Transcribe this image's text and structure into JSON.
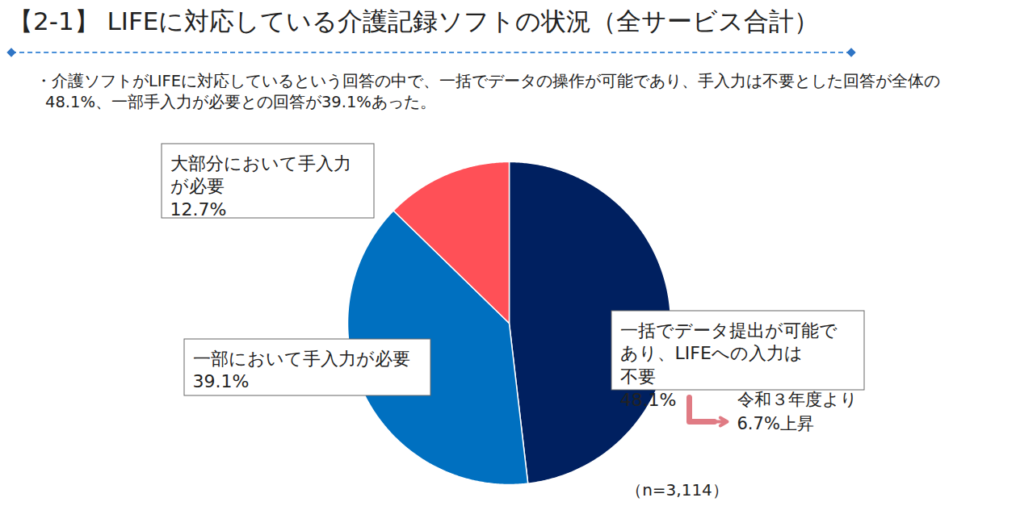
{
  "chart_data": {
    "type": "pie",
    "title": "【2-1】 LIFEに対応している介護記録ソフトの状況（全サービス合計）",
    "subtitle": "・介護ソフトがLIFEに対応しているという回答の中で、一括でデータの操作が可能であり、手入力は不要とした回答が全体の48.1%、一部手入力が必要との回答が39.1%あった。",
    "categories": [
      "一括でデータ提出が可能であり、LIFEへの入力は不要",
      "一部において手入力が必要",
      "大部分において手入力が必要"
    ],
    "values": [
      48.1,
      39.1,
      12.7
    ],
    "value_labels": [
      "48.1%",
      "39.1%",
      "12.7%"
    ],
    "colors": [
      "#002060",
      "#0070c0",
      "#ff5057"
    ],
    "data_labels": true,
    "annotations": [
      {
        "category": "一括でデータ提出が可能であり、LIFEへの入力は不要",
        "text": "令和３年度より\n6.7%上昇"
      }
    ],
    "note": "（n=3,114）"
  }
}
